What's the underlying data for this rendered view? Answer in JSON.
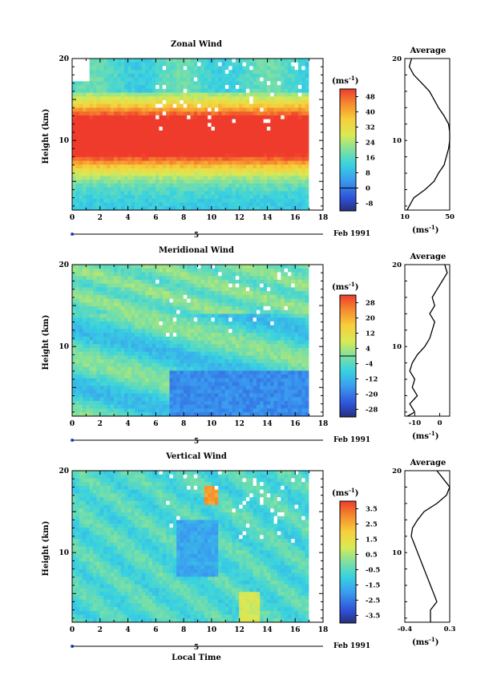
{
  "chart_data": [
    {
      "type": "heatmap",
      "title": "Zonal Wind",
      "ylabel": "Height (km)",
      "xlabel": "",
      "x_ticks": [
        "0",
        "2",
        "4",
        "6",
        "8",
        "10",
        "12",
        "14",
        "16",
        "18"
      ],
      "y_ticks": [
        "10",
        "20"
      ],
      "xlim": [
        0,
        18
      ],
      "ylim": [
        1.5,
        20
      ],
      "date_label": "Feb 1991",
      "day_marker": "5",
      "colorbar": {
        "unit": "(ms",
        "unit_exp": "-1",
        "unit_close": ")",
        "labels": [
          "-8",
          "0",
          "8",
          "16",
          "24",
          "32",
          "40",
          "48"
        ],
        "min": -12,
        "max": 52,
        "zero_line": 0
      },
      "average_profile": {
        "title": "Average",
        "xlabel": "(ms",
        "xlabel_exp": "-1",
        "xlabel_close": ")",
        "x_ticks": [
          "10",
          "50"
        ],
        "xlim": [
          10,
          50
        ],
        "y_ticks": [
          "10",
          "20"
        ],
        "heights": [
          1.5,
          3,
          4,
          5,
          6,
          7,
          8,
          9,
          10,
          11,
          12,
          13,
          14,
          15,
          16,
          17,
          18,
          19,
          20
        ],
        "values": [
          12,
          18,
          28,
          36,
          40,
          45,
          47,
          49,
          50,
          50,
          49,
          45,
          40,
          36,
          32,
          25,
          18,
          14,
          16
        ]
      }
    },
    {
      "type": "heatmap",
      "title": "Meridional Wind",
      "ylabel": "Height (km)",
      "xlabel": "",
      "x_ticks": [
        "0",
        "2",
        "4",
        "6",
        "8",
        "10",
        "12",
        "14",
        "16",
        "18"
      ],
      "y_ticks": [
        "10",
        "20"
      ],
      "xlim": [
        0,
        18
      ],
      "ylim": [
        1.5,
        20
      ],
      "date_label": "Feb 1991",
      "day_marker": "5",
      "colorbar": {
        "unit": "(ms",
        "unit_exp": "-1",
        "unit_close": ")",
        "labels": [
          "-28",
          "-20",
          "-12",
          "-4",
          "4",
          "12",
          "20",
          "28"
        ],
        "min": -32,
        "max": 32,
        "zero_line": 0
      },
      "average_profile": {
        "title": "Average",
        "xlabel": "(ms",
        "xlabel_exp": "-1",
        "xlabel_close": ")",
        "x_ticks": [
          "-10",
          "0"
        ],
        "xlim": [
          -14,
          4
        ],
        "y_ticks": [
          "10",
          "20"
        ],
        "heights": [
          1.5,
          2,
          3,
          4,
          5,
          6,
          7,
          8,
          9,
          10,
          11,
          12,
          13,
          14,
          15,
          16,
          17,
          18,
          19,
          20
        ],
        "values": [
          -13,
          -10,
          -12,
          -9,
          -11,
          -10,
          -12,
          -11,
          -9,
          -6,
          -4,
          -3,
          -2,
          -4,
          -2,
          -3,
          -1,
          1,
          3,
          2
        ]
      }
    },
    {
      "type": "heatmap",
      "title": "Vertical Wind",
      "ylabel": "Height (km)",
      "xlabel": "Local Time",
      "x_ticks": [
        "0",
        "2",
        "4",
        "6",
        "8",
        "10",
        "12",
        "14",
        "16",
        "18"
      ],
      "y_ticks": [
        "10",
        "20"
      ],
      "xlim": [
        0,
        18
      ],
      "ylim": [
        1.5,
        20
      ],
      "date_label": "Feb 1991",
      "day_marker": "5",
      "colorbar": {
        "unit": "(ms",
        "unit_exp": "-1",
        "unit_close": ")",
        "labels": [
          "-3.5",
          "-2.5",
          "-1.5",
          "-0.5",
          "0.5",
          "1.5",
          "2.5",
          "3.5"
        ],
        "min": -4,
        "max": 4,
        "zero_line": null
      },
      "average_profile": {
        "title": "Average",
        "xlabel": "(ms",
        "xlabel_exp": "-1",
        "xlabel_close": ")",
        "x_ticks": [
          "-0.4",
          "0.3"
        ],
        "xlim": [
          -0.4,
          0.3
        ],
        "y_ticks": [
          "10",
          "20"
        ],
        "heights": [
          1.5,
          3,
          4,
          5,
          6,
          7,
          8,
          9,
          10,
          11,
          12,
          13,
          14,
          15,
          16,
          17,
          18,
          19,
          20
        ],
        "values": [
          0.0,
          0.0,
          0.1,
          0.05,
          0.0,
          -0.05,
          -0.1,
          -0.15,
          -0.2,
          -0.25,
          -0.3,
          -0.28,
          -0.2,
          -0.1,
          0.1,
          0.25,
          0.3,
          0.2,
          0.1
        ]
      }
    }
  ]
}
